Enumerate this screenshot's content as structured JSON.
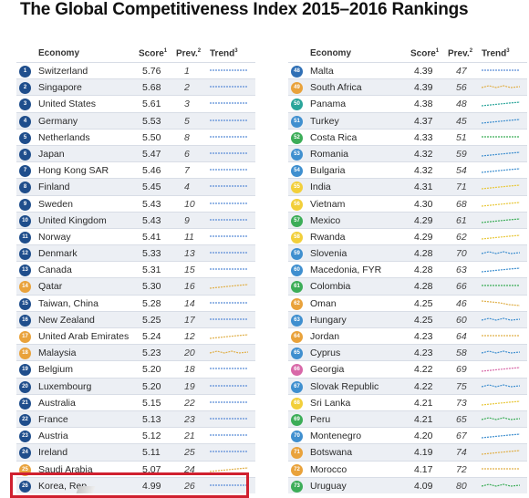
{
  "title": "The Global Competitiveness Index 2015–2016 Rankings",
  "headers": {
    "economy": "Economy",
    "score": "Score",
    "score_sup": "1",
    "prev": "Prev.",
    "prev_sup": "2",
    "trend": "Trend",
    "trend_sup": "3"
  },
  "colors": {
    "high": "#1f4e8c",
    "upper": "#2f6fb5",
    "mid": "#3f8fcf",
    "orange": "#e9a23b",
    "teal": "#2aa59a",
    "green": "#3cad58",
    "pink": "#d868a8",
    "yellow": "#f2cf3a"
  },
  "left": [
    {
      "rank": "1",
      "economy": "Switzerland",
      "score": "5.76",
      "prev": "1",
      "badge": "high",
      "trend": "flat"
    },
    {
      "rank": "2",
      "economy": "Singapore",
      "score": "5.68",
      "prev": "2",
      "badge": "high",
      "trend": "flat"
    },
    {
      "rank": "3",
      "economy": "United States",
      "score": "5.61",
      "prev": "3",
      "badge": "high",
      "trend": "flat"
    },
    {
      "rank": "4",
      "economy": "Germany",
      "score": "5.53",
      "prev": "5",
      "badge": "high",
      "trend": "flat"
    },
    {
      "rank": "5",
      "economy": "Netherlands",
      "score": "5.50",
      "prev": "8",
      "badge": "high",
      "trend": "flat"
    },
    {
      "rank": "6",
      "economy": "Japan",
      "score": "5.47",
      "prev": "6",
      "badge": "high",
      "trend": "flat"
    },
    {
      "rank": "7",
      "economy": "Hong Kong SAR",
      "score": "5.46",
      "prev": "7",
      "badge": "high",
      "trend": "flat"
    },
    {
      "rank": "8",
      "economy": "Finland",
      "score": "5.45",
      "prev": "4",
      "badge": "high",
      "trend": "flat"
    },
    {
      "rank": "9",
      "economy": "Sweden",
      "score": "5.43",
      "prev": "10",
      "badge": "high",
      "trend": "flat"
    },
    {
      "rank": "10",
      "economy": "United Kingdom",
      "score": "5.43",
      "prev": "9",
      "badge": "high",
      "trend": "flat"
    },
    {
      "rank": "11",
      "economy": "Norway",
      "score": "5.41",
      "prev": "11",
      "badge": "high",
      "trend": "flat"
    },
    {
      "rank": "12",
      "economy": "Denmark",
      "score": "5.33",
      "prev": "13",
      "badge": "high",
      "trend": "flat"
    },
    {
      "rank": "13",
      "economy": "Canada",
      "score": "5.31",
      "prev": "15",
      "badge": "high",
      "trend": "flat"
    },
    {
      "rank": "14",
      "economy": "Qatar",
      "score": "5.30",
      "prev": "16",
      "badge": "orange",
      "trend": "up"
    },
    {
      "rank": "15",
      "economy": "Taiwan, China",
      "score": "5.28",
      "prev": "14",
      "badge": "high",
      "trend": "flat"
    },
    {
      "rank": "16",
      "economy": "New Zealand",
      "score": "5.25",
      "prev": "17",
      "badge": "high",
      "trend": "flat"
    },
    {
      "rank": "17",
      "economy": "United Arab Emirates",
      "score": "5.24",
      "prev": "12",
      "badge": "orange",
      "trend": "up"
    },
    {
      "rank": "18",
      "economy": "Malaysia",
      "score": "5.23",
      "prev": "20",
      "badge": "orange",
      "trend": "wave"
    },
    {
      "rank": "19",
      "economy": "Belgium",
      "score": "5.20",
      "prev": "18",
      "badge": "high",
      "trend": "flat"
    },
    {
      "rank": "20",
      "economy": "Luxembourg",
      "score": "5.20",
      "prev": "19",
      "badge": "high",
      "trend": "flat"
    },
    {
      "rank": "21",
      "economy": "Australia",
      "score": "5.15",
      "prev": "22",
      "badge": "high",
      "trend": "flat"
    },
    {
      "rank": "22",
      "economy": "France",
      "score": "5.13",
      "prev": "23",
      "badge": "high",
      "trend": "flat"
    },
    {
      "rank": "23",
      "economy": "Austria",
      "score": "5.12",
      "prev": "21",
      "badge": "high",
      "trend": "flat"
    },
    {
      "rank": "24",
      "economy": "Ireland",
      "score": "5.11",
      "prev": "25",
      "badge": "high",
      "trend": "flat"
    },
    {
      "rank": "25",
      "economy": "Saudi Arabia",
      "score": "5.07",
      "prev": "24",
      "badge": "orange",
      "trend": "up"
    },
    {
      "rank": "26",
      "economy": "Korea, Rep.",
      "score": "4.99",
      "prev": "26",
      "badge": "high",
      "trend": "flat"
    }
  ],
  "right": [
    {
      "rank": "48",
      "economy": "Malta",
      "score": "4.39",
      "prev": "47",
      "badge": "upper",
      "trend": "flat"
    },
    {
      "rank": "49",
      "economy": "South Africa",
      "score": "4.39",
      "prev": "56",
      "badge": "orange",
      "trend": "wave"
    },
    {
      "rank": "50",
      "economy": "Panama",
      "score": "4.38",
      "prev": "48",
      "badge": "teal",
      "trend": "up"
    },
    {
      "rank": "51",
      "economy": "Turkey",
      "score": "4.37",
      "prev": "45",
      "badge": "mid",
      "trend": "up"
    },
    {
      "rank": "52",
      "economy": "Costa Rica",
      "score": "4.33",
      "prev": "51",
      "badge": "green",
      "trend": "flat"
    },
    {
      "rank": "53",
      "economy": "Romania",
      "score": "4.32",
      "prev": "59",
      "badge": "mid",
      "trend": "up"
    },
    {
      "rank": "54",
      "economy": "Bulgaria",
      "score": "4.32",
      "prev": "54",
      "badge": "mid",
      "trend": "up"
    },
    {
      "rank": "55",
      "economy": "India",
      "score": "4.31",
      "prev": "71",
      "badge": "yellow",
      "trend": "up"
    },
    {
      "rank": "56",
      "economy": "Vietnam",
      "score": "4.30",
      "prev": "68",
      "badge": "yellow",
      "trend": "up"
    },
    {
      "rank": "57",
      "economy": "Mexico",
      "score": "4.29",
      "prev": "61",
      "badge": "green",
      "trend": "up"
    },
    {
      "rank": "58",
      "economy": "Rwanda",
      "score": "4.29",
      "prev": "62",
      "badge": "yellow",
      "trend": "up"
    },
    {
      "rank": "59",
      "economy": "Slovenia",
      "score": "4.28",
      "prev": "70",
      "badge": "mid",
      "trend": "wave"
    },
    {
      "rank": "60",
      "economy": "Macedonia, FYR",
      "score": "4.28",
      "prev": "63",
      "badge": "mid",
      "trend": "up"
    },
    {
      "rank": "61",
      "economy": "Colombia",
      "score": "4.28",
      "prev": "66",
      "badge": "green",
      "trend": "flat"
    },
    {
      "rank": "62",
      "economy": "Oman",
      "score": "4.25",
      "prev": "46",
      "badge": "orange",
      "trend": "down"
    },
    {
      "rank": "63",
      "economy": "Hungary",
      "score": "4.25",
      "prev": "60",
      "badge": "mid",
      "trend": "wave"
    },
    {
      "rank": "64",
      "economy": "Jordan",
      "score": "4.23",
      "prev": "64",
      "badge": "orange",
      "trend": "flat"
    },
    {
      "rank": "65",
      "economy": "Cyprus",
      "score": "4.23",
      "prev": "58",
      "badge": "mid",
      "trend": "wave"
    },
    {
      "rank": "66",
      "economy": "Georgia",
      "score": "4.22",
      "prev": "69",
      "badge": "pink",
      "trend": "up"
    },
    {
      "rank": "67",
      "economy": "Slovak Republic",
      "score": "4.22",
      "prev": "75",
      "badge": "mid",
      "trend": "wave"
    },
    {
      "rank": "68",
      "economy": "Sri Lanka",
      "score": "4.21",
      "prev": "73",
      "badge": "yellow",
      "trend": "up"
    },
    {
      "rank": "69",
      "economy": "Peru",
      "score": "4.21",
      "prev": "65",
      "badge": "green",
      "trend": "wave"
    },
    {
      "rank": "70",
      "economy": "Montenegro",
      "score": "4.20",
      "prev": "67",
      "badge": "mid",
      "trend": "up"
    },
    {
      "rank": "71",
      "economy": "Botswana",
      "score": "4.19",
      "prev": "74",
      "badge": "orange",
      "trend": "up"
    },
    {
      "rank": "72",
      "economy": "Morocco",
      "score": "4.17",
      "prev": "72",
      "badge": "orange",
      "trend": "flat"
    },
    {
      "rank": "73",
      "economy": "Uruguay",
      "score": "4.09",
      "prev": "80",
      "badge": "green",
      "trend": "wave"
    }
  ]
}
